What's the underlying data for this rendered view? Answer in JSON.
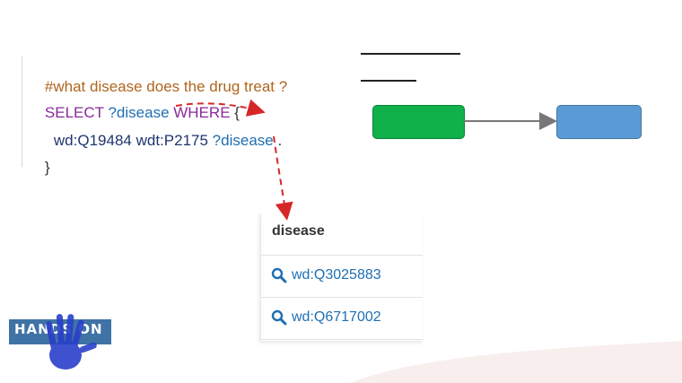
{
  "query": {
    "comment": "#what disease does the drug treat ?",
    "select_kw": "SELECT",
    "select_var": "?disease",
    "where_kw": "WHERE",
    "open_brace": "{",
    "subject": "wd:Q19484",
    "predicate": "wdt:P2175",
    "object_var": "?disease",
    "dot": ".",
    "close_brace": "}"
  },
  "results": {
    "column_header": "disease",
    "rows": [
      {
        "value": "wd:Q3025883",
        "icon": "search-icon"
      },
      {
        "value": "wd:Q6717002",
        "icon": "search-icon"
      }
    ]
  },
  "diagram": {
    "source_node_color": "#10b04a",
    "target_node_color": "#5b9bd5",
    "edge_color": "#777777"
  },
  "logo": {
    "text": "HANDS ON",
    "plate_color": "#3f72a5",
    "hand_color": "#2a3fc9"
  },
  "colors": {
    "comment": "#b0651f",
    "keyword": "#8a2a9b",
    "variable": "#1f6fb2",
    "entity": "#1f3570",
    "arrow": "#d62728"
  }
}
